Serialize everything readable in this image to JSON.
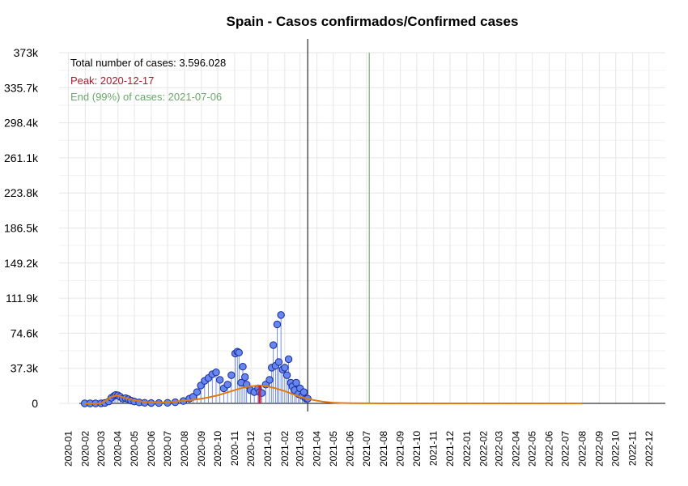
{
  "colors": {
    "points_fill": "#6688ee",
    "points_stroke": "#1a2a99",
    "stems": "#5577dd",
    "fit_line": "#e07b10",
    "peak": "#cc2233",
    "end_line": "#8fbf8f",
    "grid": "#e6e6e6",
    "annotation_total": "#000000",
    "annotation_peak": "#b2182b",
    "annotation_end": "#6aa86a"
  },
  "chart_data": {
    "type": "scatter",
    "title": "Spain - Casos confirmados/Confirmed cases",
    "xlabel": "",
    "ylabel": "",
    "xlim": [
      "2019-12-15",
      "2022-12-31"
    ],
    "ylim": [
      0,
      373000
    ],
    "y_ticks": [
      0,
      37300,
      74600,
      111900,
      149200,
      186500,
      223800,
      261100,
      298400,
      335700,
      373000
    ],
    "y_tick_labels": [
      "0",
      "37.3k",
      "74.6k",
      "111.9k",
      "149.2k",
      "186.5k",
      "223.8k",
      "261.1k",
      "298.4k",
      "335.7k",
      "373k"
    ],
    "x_tick_labels": [
      "2020-01",
      "2020-02",
      "2020-03",
      "2020-04",
      "2020-05",
      "2020-06",
      "2020-07",
      "2020-08",
      "2020-09",
      "2020-10",
      "2020-11",
      "2020-12",
      "2021-01",
      "2021-02",
      "2021-03",
      "2021-04",
      "2021-05",
      "2021-06",
      "2021-07",
      "2021-08",
      "2021-09",
      "2021-10",
      "2021-11",
      "2021-12",
      "2022-01",
      "2022-02",
      "2022-03",
      "2022-04",
      "2022-05",
      "2022-06",
      "2022-07",
      "2022-08",
      "2022-09",
      "2022-10",
      "2022-11",
      "2022-12"
    ],
    "grid": true,
    "legend": "none",
    "annotations": {
      "total": "Total number of cases: 3.596.028",
      "peak": "Peak: 2020-12-17",
      "end": "End (99%) of cases: 2021-07-06"
    },
    "vertical_lines": {
      "last_data_date": "2021-03-15",
      "end_date": "2021-07-06"
    },
    "peak_date": "2020-12-17",
    "series": [
      {
        "type": "scatter",
        "points": [
          [
            "2020-01-31",
            0
          ],
          [
            "2020-02-10",
            0
          ],
          [
            "2020-02-20",
            0
          ],
          [
            "2020-03-01",
            50
          ],
          [
            "2020-03-08",
            500
          ],
          [
            "2020-03-15",
            2000
          ],
          [
            "2020-03-20",
            6000
          ],
          [
            "2020-03-25",
            8000
          ],
          [
            "2020-03-28",
            9000
          ],
          [
            "2020-04-01",
            8500
          ],
          [
            "2020-04-05",
            7000
          ],
          [
            "2020-04-10",
            5000
          ],
          [
            "2020-04-15",
            5500
          ],
          [
            "2020-04-20",
            4500
          ],
          [
            "2020-04-25",
            3000
          ],
          [
            "2020-05-01",
            2000
          ],
          [
            "2020-05-10",
            1000
          ],
          [
            "2020-05-20",
            600
          ],
          [
            "2020-06-01",
            400
          ],
          [
            "2020-06-15",
            400
          ],
          [
            "2020-07-01",
            600
          ],
          [
            "2020-07-15",
            1200
          ],
          [
            "2020-07-30",
            2500
          ],
          [
            "2020-08-10",
            5000
          ],
          [
            "2020-08-17",
            7000
          ],
          [
            "2020-08-24",
            12000
          ],
          [
            "2020-08-31",
            19000
          ],
          [
            "2020-09-07",
            24000
          ],
          [
            "2020-09-14",
            27000
          ],
          [
            "2020-09-21",
            31000
          ],
          [
            "2020-09-28",
            33000
          ],
          [
            "2020-10-05",
            25000
          ],
          [
            "2020-10-12",
            16000
          ],
          [
            "2020-10-19",
            20000
          ],
          [
            "2020-10-26",
            30000
          ],
          [
            "2020-11-02",
            53000
          ],
          [
            "2020-11-06",
            55000
          ],
          [
            "2020-11-09",
            54000
          ],
          [
            "2020-11-13",
            22000
          ],
          [
            "2020-11-16",
            39000
          ],
          [
            "2020-11-20",
            28000
          ],
          [
            "2020-11-23",
            20000
          ],
          [
            "2020-11-30",
            14000
          ],
          [
            "2020-12-07",
            12000
          ],
          [
            "2020-12-14",
            16000
          ],
          [
            "2020-12-17",
            12000
          ],
          [
            "2020-12-21",
            11000
          ],
          [
            "2020-12-28",
            20000
          ],
          [
            "2021-01-04",
            25000
          ],
          [
            "2021-01-08",
            38000
          ],
          [
            "2021-01-11",
            62000
          ],
          [
            "2021-01-15",
            40000
          ],
          [
            "2021-01-18",
            84000
          ],
          [
            "2021-01-21",
            44000
          ],
          [
            "2021-01-25",
            94000
          ],
          [
            "2021-01-28",
            36000
          ],
          [
            "2021-02-01",
            38000
          ],
          [
            "2021-02-05",
            30000
          ],
          [
            "2021-02-08",
            47000
          ],
          [
            "2021-02-12",
            22000
          ],
          [
            "2021-02-15",
            18000
          ],
          [
            "2021-02-19",
            14000
          ],
          [
            "2021-02-22",
            22000
          ],
          [
            "2021-02-26",
            10000
          ],
          [
            "2021-03-01",
            16000
          ],
          [
            "2021-03-05",
            8000
          ],
          [
            "2021-03-08",
            12000
          ],
          [
            "2021-03-12",
            5000
          ],
          [
            "2021-03-15",
            5000
          ]
        ]
      },
      {
        "type": "line",
        "name": "",
        "points": [
          [
            "2020-01-31",
            0
          ],
          [
            "2020-02-20",
            0
          ],
          [
            "2020-03-01",
            0
          ],
          [
            "2020-03-10",
            3000
          ],
          [
            "2020-03-20",
            7000
          ],
          [
            "2020-03-30",
            8500
          ],
          [
            "2020-04-10",
            6500
          ],
          [
            "2020-04-25",
            4000
          ],
          [
            "2020-05-15",
            2000
          ],
          [
            "2020-06-01",
            1000
          ],
          [
            "2020-06-15",
            800
          ],
          [
            "2020-07-01",
            1200
          ],
          [
            "2020-07-15",
            1800
          ],
          [
            "2020-08-01",
            2800
          ],
          [
            "2020-08-15",
            3800
          ],
          [
            "2020-09-01",
            5000
          ],
          [
            "2020-09-15",
            6500
          ],
          [
            "2020-10-01",
            8500
          ],
          [
            "2020-10-15",
            11000
          ],
          [
            "2020-11-01",
            14000
          ],
          [
            "2020-11-15",
            16500
          ],
          [
            "2020-12-01",
            18200
          ],
          [
            "2020-12-17",
            19000
          ],
          [
            "2021-01-01",
            18000
          ],
          [
            "2021-01-15",
            16000
          ],
          [
            "2021-02-01",
            13000
          ],
          [
            "2021-02-15",
            10000
          ],
          [
            "2021-03-01",
            7000
          ],
          [
            "2021-03-15",
            4800
          ],
          [
            "2021-04-01",
            2800
          ],
          [
            "2021-04-15",
            1600
          ],
          [
            "2021-05-01",
            800
          ],
          [
            "2021-05-15",
            400
          ],
          [
            "2021-06-01",
            150
          ],
          [
            "2021-07-01",
            50
          ],
          [
            "2021-08-01",
            10
          ],
          [
            "2022-01-01",
            0
          ],
          [
            "2022-08-01",
            0
          ]
        ]
      }
    ]
  }
}
